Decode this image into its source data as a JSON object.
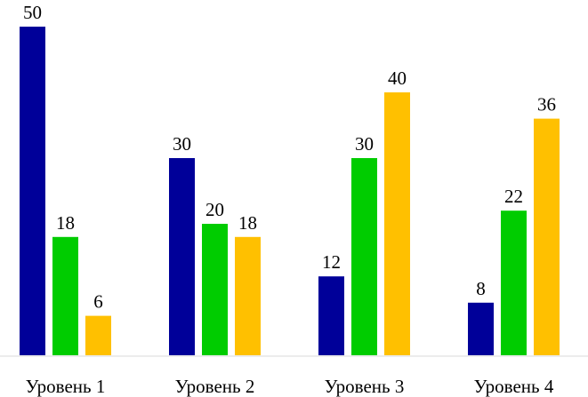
{
  "chart_data": {
    "type": "bar",
    "title": "",
    "xlabel": "",
    "ylabel": "",
    "categories": [
      "Уровень 1",
      "Уровень 2",
      "Уровень 3",
      "Уровень 4"
    ],
    "series": [
      {
        "values": [
          50,
          30,
          12,
          8
        ],
        "color": "#000099"
      },
      {
        "values": [
          18,
          20,
          30,
          22
        ],
        "color": "#00cc00"
      },
      {
        "values": [
          6,
          18,
          40,
          36
        ],
        "color": "#ffc000"
      }
    ],
    "ylim": [
      0,
      50
    ],
    "grid": false,
    "legend": "none",
    "data_labels": true,
    "axis_color": "#d9d9d9"
  }
}
